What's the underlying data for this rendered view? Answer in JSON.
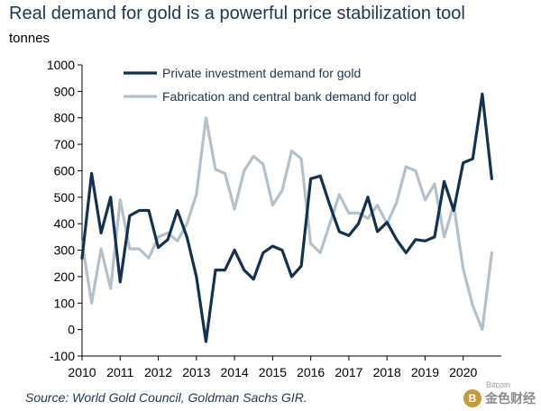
{
  "title": "Real demand for gold is a powerful price stabilization tool",
  "unit": "tonnes",
  "source": "Source: World Gold Council, Goldman Sachs GIR.",
  "watermark": {
    "logo_text": "B",
    "text": "金色财经",
    "sub": "Bitcoin"
  },
  "colors": {
    "private": "#14324f",
    "fabrication": "#b4c0cc",
    "axis": "#000000",
    "text": "#1f3550"
  },
  "chart_data": {
    "type": "line",
    "xlabel": "",
    "ylabel": "tonnes",
    "ylim": [
      -100,
      1000
    ],
    "yticks": [
      "-100",
      "0",
      "100",
      "200",
      "300",
      "400",
      "500",
      "600",
      "700",
      "800",
      "900",
      "1000"
    ],
    "xlim": [
      2010.0,
      2021.0
    ],
    "xticks": [
      "2010",
      "2011",
      "2012",
      "2013",
      "2014",
      "2015",
      "2016",
      "2017",
      "2018",
      "2019",
      "2020"
    ],
    "legend_position": "top",
    "series": [
      {
        "name": "Private investment demand for gold",
        "color": "#14324f",
        "x": [
          2010.0,
          2010.25,
          2010.5,
          2010.75,
          2011.0,
          2011.25,
          2011.5,
          2011.75,
          2012.0,
          2012.25,
          2012.5,
          2012.75,
          2013.0,
          2013.25,
          2013.5,
          2013.75,
          2014.0,
          2014.25,
          2014.5,
          2014.75,
          2015.0,
          2015.25,
          2015.5,
          2015.75,
          2016.0,
          2016.25,
          2016.5,
          2016.75,
          2017.0,
          2017.25,
          2017.5,
          2017.75,
          2018.0,
          2018.25,
          2018.5,
          2018.75,
          2019.0,
          2019.25,
          2019.5,
          2019.75,
          2020.0,
          2020.25,
          2020.5,
          2020.75
        ],
        "y": [
          270,
          590,
          365,
          500,
          180,
          430,
          450,
          450,
          310,
          340,
          450,
          350,
          200,
          -45,
          225,
          225,
          300,
          225,
          190,
          290,
          315,
          300,
          200,
          240,
          570,
          580,
          470,
          370,
          355,
          400,
          500,
          370,
          405,
          340,
          290,
          340,
          335,
          350,
          560,
          450,
          630,
          645,
          890,
          570
        ]
      },
      {
        "name": "Fabrication and central bank demand for gold",
        "color": "#b4c0cc",
        "x": [
          2010.0,
          2010.25,
          2010.5,
          2010.75,
          2011.0,
          2011.25,
          2011.5,
          2011.75,
          2012.0,
          2012.25,
          2012.5,
          2012.75,
          2013.0,
          2013.25,
          2013.5,
          2013.75,
          2014.0,
          2014.25,
          2014.5,
          2014.75,
          2015.0,
          2015.25,
          2015.5,
          2015.75,
          2016.0,
          2016.25,
          2016.5,
          2016.75,
          2017.0,
          2017.25,
          2017.5,
          2017.75,
          2018.0,
          2018.25,
          2018.5,
          2018.75,
          2019.0,
          2019.25,
          2019.5,
          2019.75,
          2020.0,
          2020.25,
          2020.5,
          2020.75
        ],
        "y": [
          330,
          100,
          305,
          155,
          490,
          305,
          305,
          270,
          350,
          365,
          335,
          400,
          510,
          800,
          605,
          590,
          455,
          600,
          655,
          625,
          470,
          525,
          675,
          645,
          325,
          290,
          400,
          510,
          440,
          440,
          420,
          470,
          400,
          480,
          615,
          600,
          490,
          550,
          350,
          470,
          230,
          90,
          0,
          290
        ]
      }
    ]
  }
}
